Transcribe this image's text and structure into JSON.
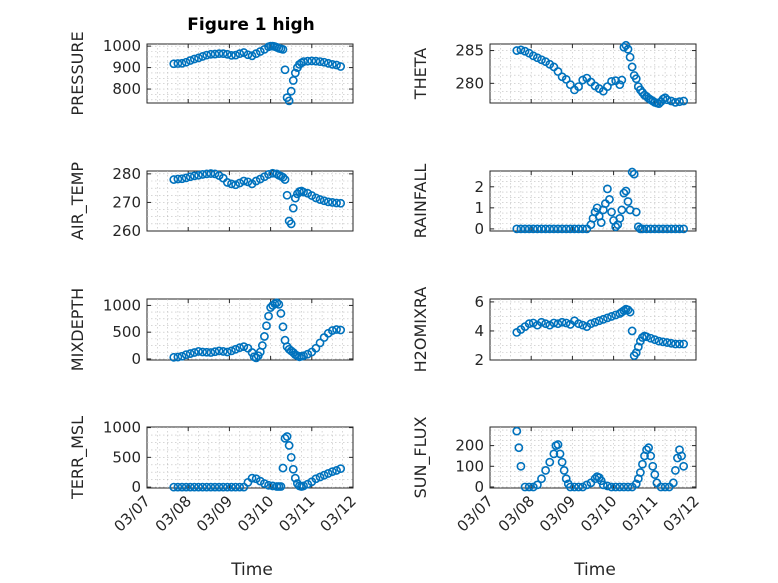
{
  "figure": {
    "title": "Figure 1 high",
    "xlabel": "Time"
  },
  "colors": {
    "marker": "#0072bd",
    "axes": "#262626",
    "grid": "#bdbdbd"
  },
  "chart_data": [
    {
      "type": "scatter",
      "name": "pressure",
      "ylabel": "PRESSURE",
      "ylim": [
        735,
        1010
      ],
      "yticks": [
        800,
        900,
        1000
      ],
      "xlim": [
        0,
        5
      ],
      "xticks": [
        "03/07",
        "03/08",
        "03/09",
        "03/10",
        "03/11",
        "03/12"
      ],
      "x": [
        0.65,
        0.75,
        0.85,
        0.95,
        1.05,
        1.15,
        1.25,
        1.35,
        1.45,
        1.55,
        1.65,
        1.75,
        1.85,
        1.95,
        2.05,
        2.15,
        2.25,
        2.35,
        2.45,
        2.55,
        2.65,
        2.75,
        2.85,
        2.95,
        3.0,
        3.05,
        3.1,
        3.15,
        3.2,
        3.25,
        3.3,
        3.35,
        3.4,
        3.45,
        3.5,
        3.55,
        3.6,
        3.65,
        3.7,
        3.75,
        3.8,
        3.9,
        4.0,
        4.1,
        4.2,
        4.3,
        4.4,
        4.5,
        4.6,
        4.7
      ],
      "y": [
        918,
        919,
        920,
        925,
        933,
        940,
        945,
        952,
        958,
        962,
        963,
        965,
        965,
        962,
        957,
        958,
        965,
        970,
        960,
        955,
        965,
        975,
        985,
        997,
        1000,
        1000,
        998,
        995,
        990,
        988,
        985,
        890,
        760,
        745,
        790,
        840,
        875,
        900,
        915,
        922,
        928,
        930,
        931,
        930,
        928,
        925,
        920,
        915,
        912,
        905
      ]
    },
    {
      "type": "scatter",
      "name": "theta",
      "ylabel": "THETA",
      "ylim": [
        277,
        286
      ],
      "yticks": [
        280,
        285
      ],
      "xlim": [
        0,
        5
      ],
      "xticks": [
        "03/07",
        "03/08",
        "03/09",
        "03/10",
        "03/11",
        "03/12"
      ],
      "x": [
        0.65,
        0.75,
        0.85,
        0.95,
        1.05,
        1.15,
        1.25,
        1.35,
        1.45,
        1.55,
        1.65,
        1.75,
        1.85,
        1.95,
        2.05,
        2.15,
        2.25,
        2.35,
        2.45,
        2.55,
        2.65,
        2.75,
        2.85,
        2.95,
        3.05,
        3.15,
        3.2,
        3.25,
        3.3,
        3.35,
        3.4,
        3.45,
        3.5,
        3.55,
        3.6,
        3.65,
        3.7,
        3.75,
        3.8,
        3.85,
        3.9,
        3.95,
        4.0,
        4.05,
        4.1,
        4.15,
        4.2,
        4.25,
        4.3,
        4.4,
        4.5,
        4.6,
        4.7
      ],
      "y": [
        285,
        285.1,
        284.9,
        284.6,
        284.2,
        283.9,
        283.6,
        283.3,
        282.9,
        282.5,
        281.8,
        281,
        280.6,
        279.8,
        279,
        279.5,
        280.5,
        280.8,
        280.2,
        279.6,
        279.2,
        278.8,
        279.5,
        280.3,
        280.4,
        279.8,
        280.5,
        285.5,
        285.8,
        285.2,
        284,
        282.5,
        281.2,
        280.7,
        279.5,
        279,
        278.6,
        278.2,
        278,
        277.7,
        277.5,
        277.3,
        277.1,
        277.0,
        276.9,
        277.2,
        277.6,
        277.8,
        277.5,
        277.3,
        277.1,
        277.2,
        277.3
      ]
    },
    {
      "type": "scatter",
      "name": "air_temp",
      "ylabel": "AIR_TEMP",
      "ylim": [
        260,
        281
      ],
      "yticks": [
        260,
        270,
        280
      ],
      "xlim": [
        0,
        5
      ],
      "xticks": [
        "03/07",
        "03/08",
        "03/09",
        "03/10",
        "03/11",
        "03/12"
      ],
      "x": [
        0.65,
        0.75,
        0.85,
        0.95,
        1.05,
        1.15,
        1.25,
        1.35,
        1.45,
        1.55,
        1.65,
        1.75,
        1.85,
        1.95,
        2.05,
        2.15,
        2.25,
        2.35,
        2.45,
        2.55,
        2.65,
        2.75,
        2.85,
        2.95,
        3.05,
        3.15,
        3.2,
        3.25,
        3.3,
        3.35,
        3.4,
        3.45,
        3.5,
        3.55,
        3.6,
        3.65,
        3.7,
        3.75,
        3.8,
        3.9,
        4.0,
        4.1,
        4.2,
        4.3,
        4.4,
        4.5,
        4.6,
        4.7
      ],
      "y": [
        278,
        278.2,
        278.3,
        278.6,
        279,
        279.3,
        279.5,
        279.8,
        280,
        280.1,
        280,
        279.4,
        278.5,
        277,
        276.5,
        276.2,
        276.8,
        277.5,
        277.2,
        276.5,
        277.5,
        278.2,
        279,
        279.8,
        280.2,
        280,
        279.5,
        279.2,
        278.8,
        278,
        272.5,
        263.5,
        262.5,
        268,
        271.5,
        273,
        273.8,
        274,
        273.6,
        273.2,
        272.4,
        271.6,
        271,
        270.6,
        270.2,
        270,
        269.8,
        269.7
      ]
    },
    {
      "type": "scatter",
      "name": "rainfall",
      "ylabel": "RAINFALL",
      "ylim": [
        -0.1,
        2.75
      ],
      "yticks": [
        0,
        1,
        2
      ],
      "xlim": [
        0,
        5
      ],
      "xticks": [
        "03/07",
        "03/08",
        "03/09",
        "03/10",
        "03/11",
        "03/12"
      ],
      "x": [
        0.65,
        0.75,
        0.85,
        0.95,
        1.05,
        1.15,
        1.25,
        1.35,
        1.45,
        1.55,
        1.65,
        1.75,
        1.85,
        1.95,
        2.05,
        2.15,
        2.25,
        2.35,
        2.45,
        2.5,
        2.55,
        2.6,
        2.65,
        2.7,
        2.75,
        2.8,
        2.85,
        2.9,
        2.95,
        3.0,
        3.05,
        3.1,
        3.15,
        3.2,
        3.25,
        3.3,
        3.35,
        3.4,
        3.45,
        3.5,
        3.55,
        3.6,
        3.65,
        3.7,
        3.8,
        3.9,
        4.0,
        4.1,
        4.2,
        4.3,
        4.4,
        4.5,
        4.6,
        4.7
      ],
      "y": [
        0,
        0,
        0,
        0,
        0,
        0,
        0,
        0,
        0,
        0,
        0,
        0,
        0,
        0,
        0,
        0,
        0,
        0,
        0.2,
        0.5,
        0.8,
        1.0,
        0.6,
        0.3,
        0.9,
        1.2,
        1.9,
        1.4,
        0.8,
        0.4,
        0.1,
        0.2,
        0.5,
        0.9,
        1.7,
        1.8,
        1.3,
        0.9,
        2.7,
        2.6,
        0.8,
        0.1,
        0,
        0,
        0,
        0,
        0,
        0,
        0,
        0,
        0,
        0,
        0,
        0
      ]
    },
    {
      "type": "scatter",
      "name": "mixdepth",
      "ylabel": "MIXDEPTH",
      "ylim": [
        -20,
        1120
      ],
      "yticks": [
        0,
        500,
        1000
      ],
      "xlim": [
        0,
        5
      ],
      "xticks": [
        "03/07",
        "03/08",
        "03/09",
        "03/10",
        "03/11",
        "03/12"
      ],
      "x": [
        0.65,
        0.75,
        0.85,
        0.95,
        1.05,
        1.15,
        1.25,
        1.35,
        1.45,
        1.55,
        1.65,
        1.75,
        1.85,
        1.95,
        2.05,
        2.15,
        2.25,
        2.35,
        2.45,
        2.55,
        2.6,
        2.65,
        2.7,
        2.75,
        2.8,
        2.85,
        2.9,
        2.95,
        3.0,
        3.05,
        3.1,
        3.15,
        3.2,
        3.25,
        3.3,
        3.35,
        3.4,
        3.45,
        3.5,
        3.55,
        3.6,
        3.65,
        3.7,
        3.75,
        3.8,
        3.9,
        4.0,
        4.1,
        4.2,
        4.3,
        4.4,
        4.5,
        4.6,
        4.7
      ],
      "y": [
        30,
        35,
        50,
        80,
        100,
        120,
        140,
        130,
        125,
        120,
        135,
        150,
        140,
        130,
        150,
        180,
        210,
        230,
        200,
        120,
        40,
        20,
        60,
        130,
        250,
        420,
        620,
        800,
        960,
        1000,
        1030,
        1050,
        1020,
        850,
        600,
        350,
        230,
        180,
        150,
        120,
        80,
        60,
        40,
        50,
        60,
        90,
        130,
        200,
        300,
        400,
        480,
        530,
        550,
        540
      ]
    },
    {
      "type": "scatter",
      "name": "h2omixra",
      "ylabel": "H2OMIXRA",
      "ylim": [
        2,
        6.2
      ],
      "yticks": [
        2,
        4,
        6
      ],
      "xlim": [
        0,
        5
      ],
      "xticks": [
        "03/07",
        "03/08",
        "03/09",
        "03/10",
        "03/11",
        "03/12"
      ],
      "x": [
        0.65,
        0.75,
        0.85,
        0.95,
        1.05,
        1.15,
        1.25,
        1.35,
        1.45,
        1.55,
        1.65,
        1.75,
        1.85,
        1.95,
        2.05,
        2.15,
        2.25,
        2.35,
        2.45,
        2.55,
        2.65,
        2.75,
        2.85,
        2.95,
        3.05,
        3.15,
        3.2,
        3.25,
        3.3,
        3.35,
        3.4,
        3.45,
        3.5,
        3.55,
        3.6,
        3.65,
        3.7,
        3.75,
        3.8,
        3.9,
        4.0,
        4.1,
        4.2,
        4.3,
        4.4,
        4.5,
        4.6,
        4.7
      ],
      "y": [
        3.9,
        4.1,
        4.3,
        4.5,
        4.55,
        4.4,
        4.6,
        4.5,
        4.4,
        4.55,
        4.5,
        4.6,
        4.55,
        4.45,
        4.7,
        4.5,
        4.4,
        4.3,
        4.5,
        4.6,
        4.7,
        4.8,
        4.9,
        5.0,
        5.1,
        5.2,
        5.3,
        5.4,
        5.5,
        5.45,
        5.3,
        4.0,
        2.3,
        2.5,
        2.9,
        3.3,
        3.55,
        3.65,
        3.6,
        3.5,
        3.4,
        3.3,
        3.25,
        3.2,
        3.15,
        3.1,
        3.1,
        3.1
      ]
    },
    {
      "type": "scatter",
      "name": "terr_msl",
      "ylabel": "TERR_MSL",
      "ylim": [
        -15,
        1010
      ],
      "yticks": [
        0,
        500,
        1000
      ],
      "xlim": [
        0,
        5
      ],
      "xticks": [
        "03/07",
        "03/08",
        "03/09",
        "03/10",
        "03/11",
        "03/12"
      ],
      "x": [
        0.65,
        0.75,
        0.85,
        0.95,
        1.05,
        1.15,
        1.25,
        1.35,
        1.45,
        1.55,
        1.65,
        1.75,
        1.85,
        1.95,
        2.05,
        2.15,
        2.25,
        2.35,
        2.45,
        2.55,
        2.65,
        2.75,
        2.85,
        2.95,
        3.05,
        3.15,
        3.2,
        3.25,
        3.3,
        3.35,
        3.4,
        3.45,
        3.5,
        3.55,
        3.6,
        3.65,
        3.7,
        3.75,
        3.8,
        3.9,
        4.0,
        4.1,
        4.2,
        4.3,
        4.4,
        4.5,
        4.6,
        4.7
      ],
      "y": [
        0,
        0,
        0,
        0,
        0,
        0,
        0,
        0,
        0,
        0,
        0,
        0,
        0,
        0,
        0,
        0,
        0,
        0,
        80,
        150,
        140,
        100,
        60,
        30,
        20,
        10,
        10,
        10,
        320,
        820,
        850,
        700,
        500,
        300,
        150,
        60,
        20,
        10,
        20,
        50,
        90,
        140,
        170,
        200,
        230,
        260,
        280,
        310
      ]
    },
    {
      "type": "scatter",
      "name": "sun_flux",
      "ylabel": "SUN_FLUX",
      "ylim": [
        -5,
        290
      ],
      "yticks": [
        0,
        100,
        200
      ],
      "xlim": [
        0,
        5
      ],
      "xticks": [
        "03/07",
        "03/08",
        "03/09",
        "03/10",
        "03/11",
        "03/12"
      ],
      "x": [
        0.65,
        0.7,
        0.75,
        0.85,
        0.95,
        1.05,
        1.15,
        1.25,
        1.35,
        1.45,
        1.55,
        1.6,
        1.65,
        1.7,
        1.75,
        1.8,
        1.85,
        1.9,
        1.95,
        2.05,
        2.15,
        2.25,
        2.35,
        2.45,
        2.55,
        2.6,
        2.65,
        2.7,
        2.75,
        2.85,
        2.95,
        3.05,
        3.15,
        3.25,
        3.35,
        3.45,
        3.55,
        3.6,
        3.65,
        3.7,
        3.75,
        3.8,
        3.85,
        3.9,
        3.95,
        4.0,
        4.05,
        4.15,
        4.25,
        4.35,
        4.45,
        4.5,
        4.55,
        4.6,
        4.65,
        4.7
      ],
      "y": [
        270,
        190,
        100,
        0,
        0,
        0,
        10,
        40,
        80,
        120,
        160,
        200,
        205,
        160,
        120,
        80,
        40,
        15,
        0,
        0,
        0,
        0,
        10,
        20,
        40,
        50,
        45,
        30,
        10,
        5,
        0,
        0,
        0,
        0,
        0,
        0,
        15,
        40,
        70,
        110,
        150,
        180,
        190,
        150,
        100,
        60,
        20,
        0,
        0,
        0,
        20,
        80,
        140,
        180,
        150,
        100
      ]
    }
  ]
}
